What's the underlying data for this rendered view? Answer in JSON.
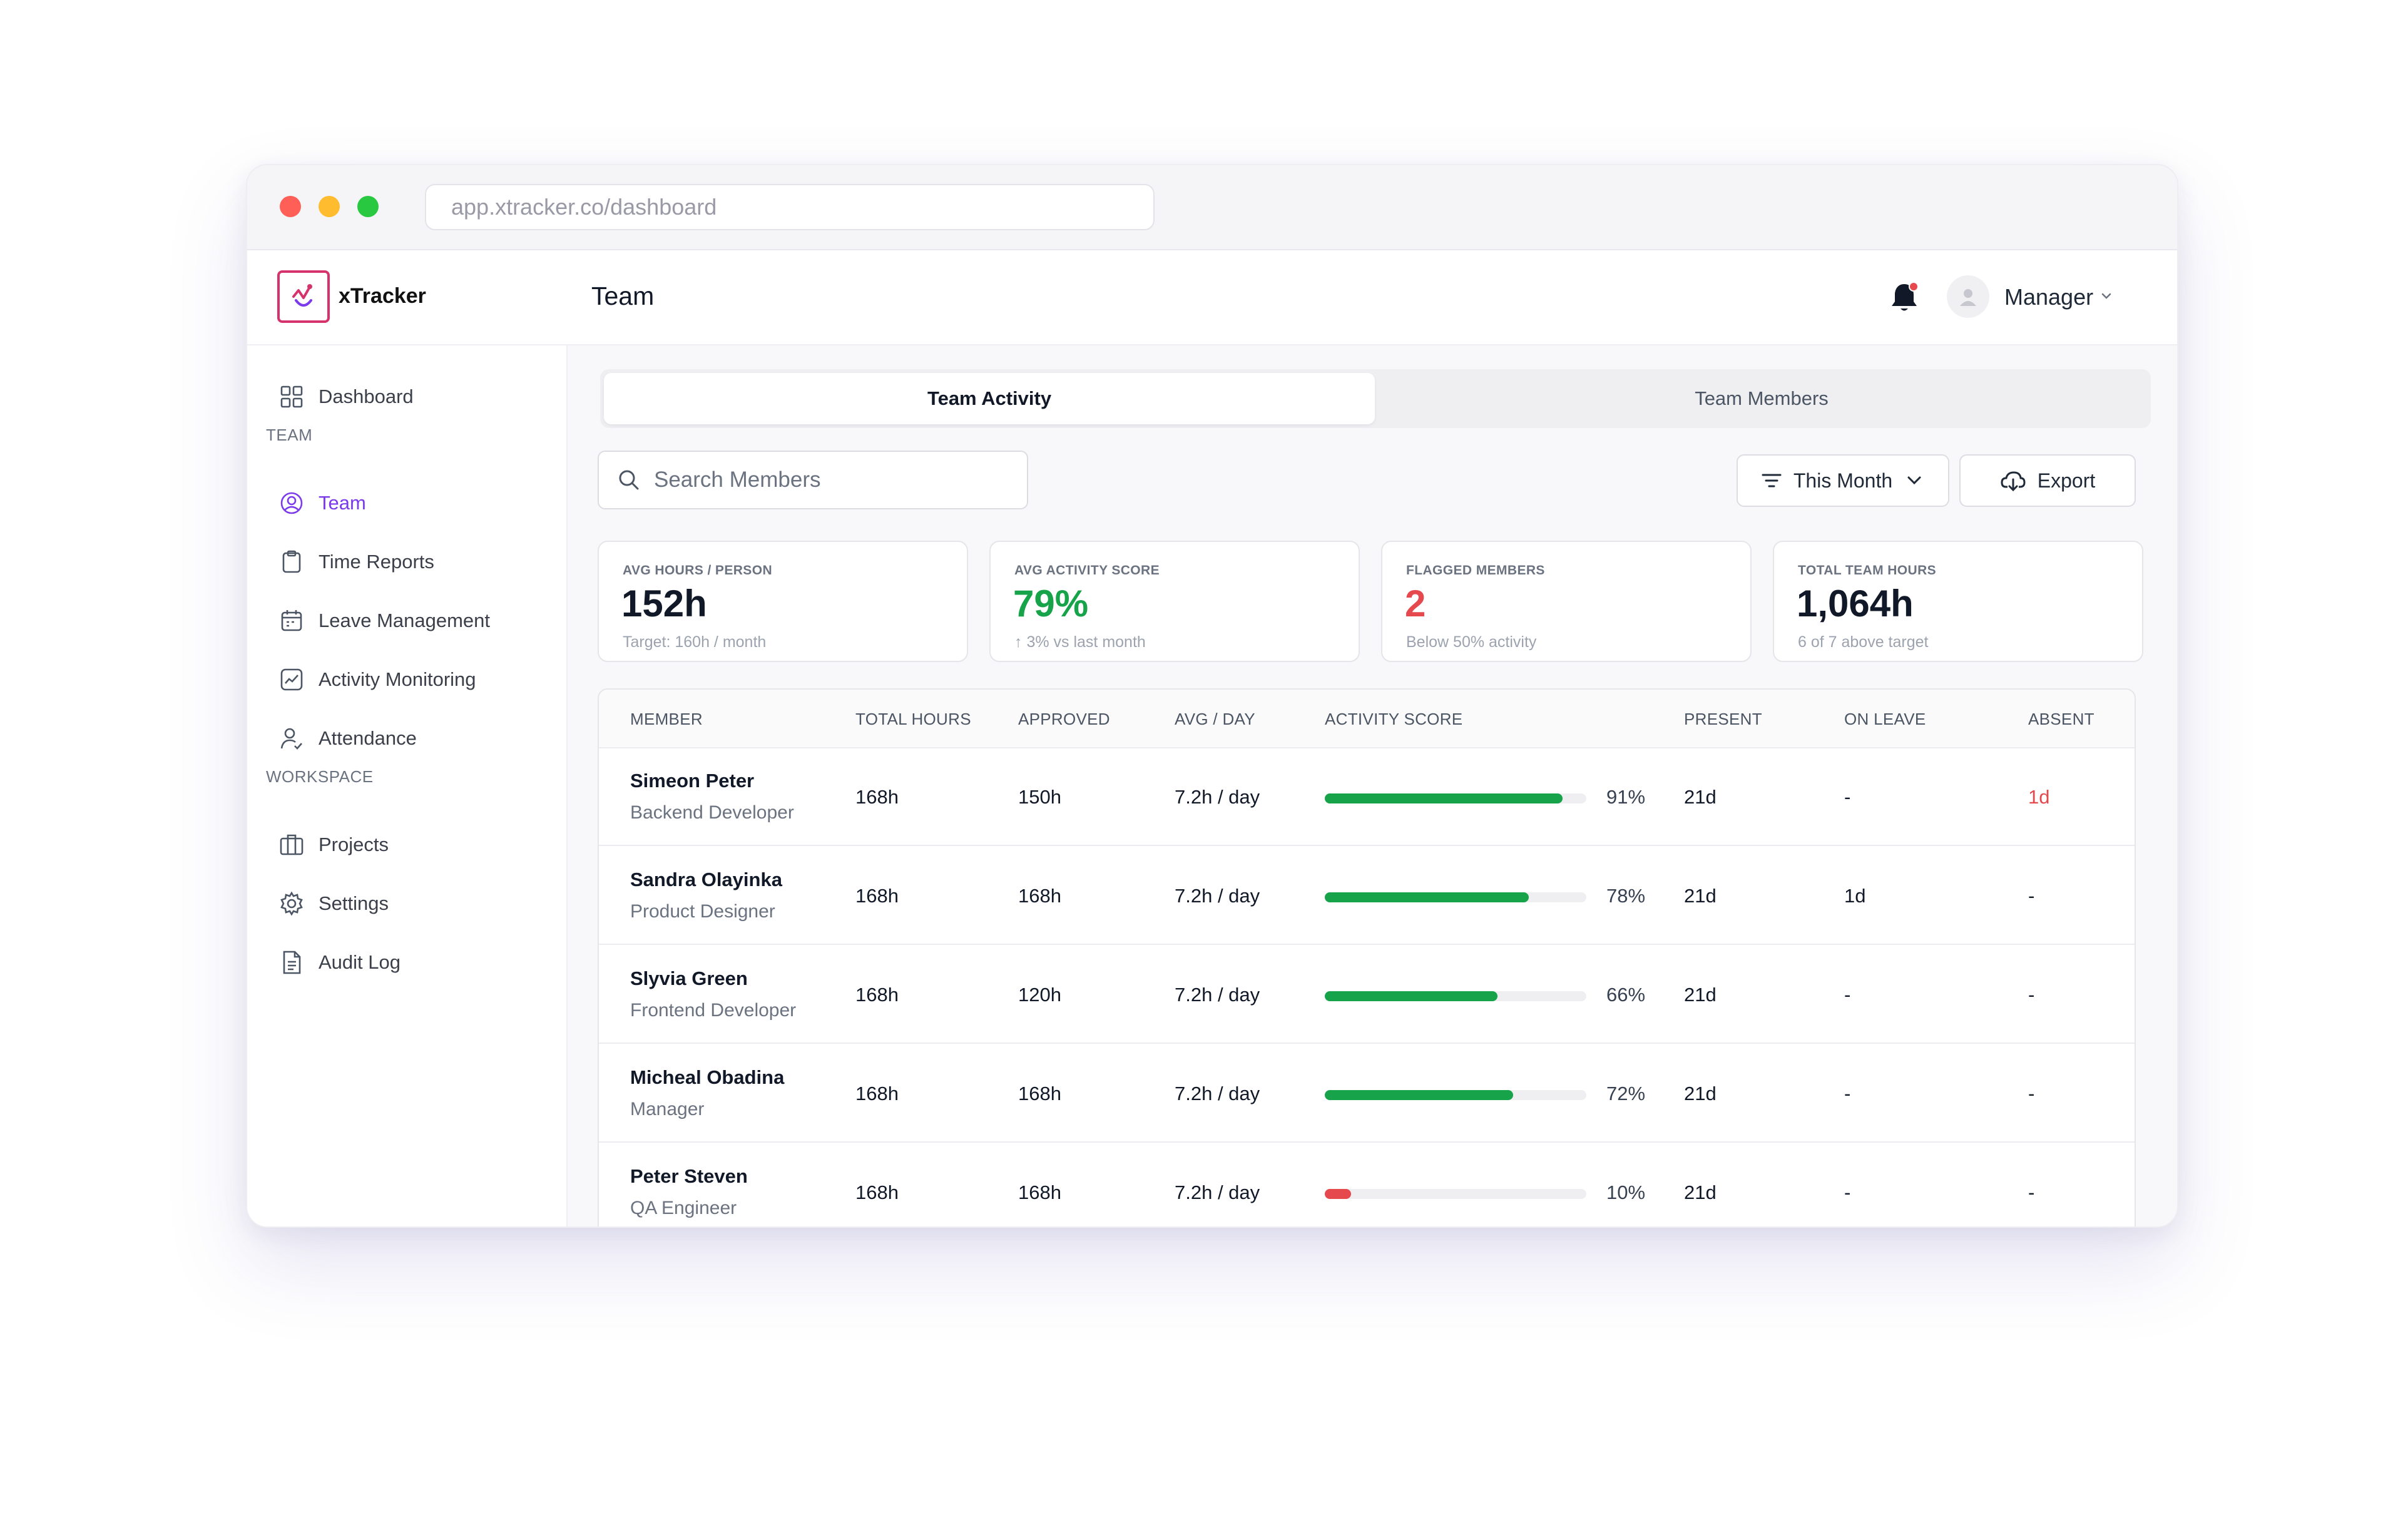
{
  "browser": {
    "url": "app.xtracker.co/dashboard"
  },
  "app": {
    "name": "xTracker",
    "page_title": "Team"
  },
  "header": {
    "user_label": "Manager"
  },
  "sidebar": {
    "dashboard": "Dashboard",
    "section_team": "TEAM",
    "team": "Team",
    "time_reports": "Time Reports",
    "leave_management": "Leave Management",
    "activity_monitoring": "Activity Monitoring",
    "attendance": "Attendance",
    "section_workspace": "WORKSPACE",
    "projects": "Projects",
    "settings": "Settings",
    "audit_log": "Audit Log"
  },
  "tabs": {
    "active": "Team Activity",
    "inactive": "Team Members"
  },
  "search": {
    "placeholder": "Search Members"
  },
  "filters": {
    "period": "This Month",
    "export": "Export"
  },
  "stats": [
    {
      "label": "AVG HOURS / PERSON",
      "value": "152h",
      "sub": "Target: 160h / month"
    },
    {
      "label": "AVG ACTIVITY SCORE",
      "value": "79%",
      "sub": "↑ 3% vs last month"
    },
    {
      "label": "FLAGGED MEMBERS",
      "value": "2",
      "sub": "Below 50% activity"
    },
    {
      "label": "TOTAL TEAM HOURS",
      "value": "1,064h",
      "sub": "6 of 7 above target"
    }
  ],
  "table": {
    "headers": [
      "MEMBER",
      "TOTAL HOURS",
      "APPROVED",
      "AVG / DAY",
      "ACTIVITY SCORE",
      "PRESENT",
      "ON LEAVE",
      "ABSENT"
    ],
    "rows": [
      {
        "name": "Simeon Peter",
        "role": "Backend Developer",
        "total": "168h",
        "approved": "150h",
        "avg": "7.2h / day",
        "score": 91,
        "score_label": "91%",
        "present": "21d",
        "leave": "-",
        "absent": "1d"
      },
      {
        "name": "Sandra Olayinka",
        "role": "Product Designer",
        "total": "168h",
        "approved": "168h",
        "avg": "7.2h / day",
        "score": 78,
        "score_label": "78%",
        "present": "21d",
        "leave": "1d",
        "absent": "-"
      },
      {
        "name": "Slyvia Green",
        "role": "Frontend Developer",
        "total": "168h",
        "approved": "120h",
        "avg": "7.2h / day",
        "score": 66,
        "score_label": "66%",
        "present": "21d",
        "leave": "-",
        "absent": "-"
      },
      {
        "name": "Micheal Obadina",
        "role": "Manager",
        "total": "168h",
        "approved": "168h",
        "avg": "7.2h / day",
        "score": 72,
        "score_label": "72%",
        "present": "21d",
        "leave": "-",
        "absent": "-"
      },
      {
        "name": "Peter Steven",
        "role": "QA Engineer",
        "total": "168h",
        "approved": "168h",
        "avg": "7.2h / day",
        "score": 10,
        "score_label": "10%",
        "present": "21d",
        "leave": "-",
        "absent": "-"
      }
    ]
  },
  "colors": {
    "accent": "#7c3aed",
    "good": "#16a34a",
    "bad": "#e5484d"
  }
}
